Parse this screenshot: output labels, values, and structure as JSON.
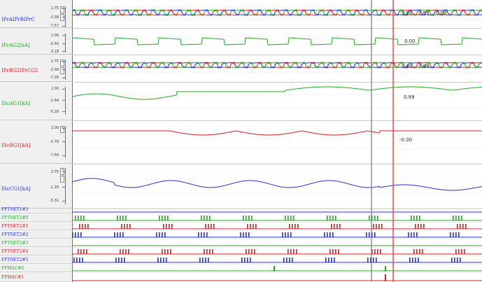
{
  "colors": {
    "green": "#22aa22",
    "red": "#cc2222",
    "blue": "#2233cc",
    "cursor_gray": "#808080",
    "cursor_red": "#ee3333",
    "grid": "#c8c8c8",
    "scale_blue": "#4a6ee0"
  },
  "analog_channels": [
    {
      "label": "IPrAIPrBIPrC",
      "color": "#22aa22",
      "scale": [
        "2.75",
        "-2.38",
        "-7.57"
      ],
      "values": [
        "0.00",
        "0.99",
        "0.00"
      ]
    },
    {
      "label": "IPrAG2[kA]",
      "color": "#22aa22",
      "scale": [
        "2.00",
        "-0.50",
        "-3.18"
      ],
      "values": [
        "0.00"
      ]
    },
    {
      "label": "IPrBG2IPrCG2",
      "color": "#cc2222",
      "scale": [
        "2.75",
        "-2.38",
        "-7.28"
      ],
      "values": [
        "0.00",
        "0.99"
      ]
    },
    {
      "label": "IScAG1[kA]",
      "color": "#22aa22",
      "scale": [
        "2.00",
        "-1.64",
        "-5.28"
      ],
      "values": [
        "0.99"
      ]
    },
    {
      "label": "IScBG1[kA]",
      "color": "#cc2222",
      "scale": [
        "2.00",
        "-2.78",
        "-7.58"
      ],
      "values": [
        "-0.00"
      ]
    },
    {
      "label": "IScCG1[kA]",
      "color": "#2233cc",
      "scale": [
        "2.75",
        "-1.26",
        "-5.31"
      ],
      "values": []
    }
  ],
  "digital_channels": [
    {
      "label": "FPTNET1#3",
      "color": "#2233cc",
      "pattern": "none"
    },
    {
      "label": "FPTNET2#0",
      "color": "#22aa22",
      "pattern": "pulses"
    },
    {
      "label": "FPTNET2#1",
      "color": "#cc2222",
      "pattern": "pulses"
    },
    {
      "label": "FPTNET2#2",
      "color": "#2233cc",
      "pattern": "pulses"
    },
    {
      "label": "FPTNET2#3",
      "color": "#22aa22",
      "pattern": "none"
    },
    {
      "label": "FPTNET2#4",
      "color": "#cc2222",
      "pattern": "pulses"
    },
    {
      "label": "FPTNET2#5",
      "color": "#2233cc",
      "pattern": "pulses"
    },
    {
      "label": "FPMAC#0",
      "color": "#22aa22",
      "pattern": "single"
    },
    {
      "label": "FPMAC#1",
      "color": "#cc2222",
      "pattern": "single"
    }
  ]
}
